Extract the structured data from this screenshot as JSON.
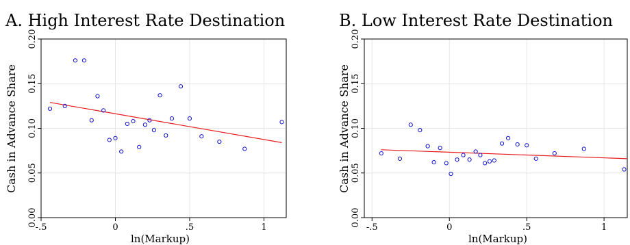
{
  "chart_data": [
    {
      "type": "scatter",
      "title": "A. High Interest Rate Destination",
      "xlabel": "ln(Markup)",
      "ylabel": "Cash in Advance Share",
      "xlim": [
        -0.5,
        1.15
      ],
      "ylim": [
        0,
        0.2
      ],
      "xticks": [
        -0.5,
        0,
        0.5,
        1
      ],
      "xtick_labels": [
        "-.5",
        "0",
        ".5",
        "1"
      ],
      "yticks": [
        0,
        0.05,
        0.1,
        0.15,
        0.2
      ],
      "ytick_labels": [
        "0.00",
        "0.05",
        "0.10",
        "0.15",
        "0.20"
      ],
      "grid": true,
      "marker_color": "#1010cc",
      "fit_color": "#e8191c",
      "points": [
        {
          "x": -0.44,
          "y": 0.122
        },
        {
          "x": -0.34,
          "y": 0.125
        },
        {
          "x": -0.27,
          "y": 0.176
        },
        {
          "x": -0.21,
          "y": 0.176
        },
        {
          "x": -0.16,
          "y": 0.109
        },
        {
          "x": -0.12,
          "y": 0.136
        },
        {
          "x": -0.08,
          "y": 0.12
        },
        {
          "x": -0.04,
          "y": 0.087
        },
        {
          "x": 0.0,
          "y": 0.089
        },
        {
          "x": 0.04,
          "y": 0.074
        },
        {
          "x": 0.08,
          "y": 0.105
        },
        {
          "x": 0.12,
          "y": 0.108
        },
        {
          "x": 0.16,
          "y": 0.079
        },
        {
          "x": 0.2,
          "y": 0.104
        },
        {
          "x": 0.23,
          "y": 0.109
        },
        {
          "x": 0.26,
          "y": 0.098
        },
        {
          "x": 0.3,
          "y": 0.137
        },
        {
          "x": 0.34,
          "y": 0.092
        },
        {
          "x": 0.38,
          "y": 0.111
        },
        {
          "x": 0.44,
          "y": 0.147
        },
        {
          "x": 0.5,
          "y": 0.111
        },
        {
          "x": 0.58,
          "y": 0.091
        },
        {
          "x": 0.7,
          "y": 0.085
        },
        {
          "x": 0.87,
          "y": 0.077
        },
        {
          "x": 1.12,
          "y": 0.107
        }
      ],
      "fit_line": {
        "x": [
          -0.44,
          1.12
        ],
        "y": [
          0.129,
          0.084
        ]
      }
    },
    {
      "type": "scatter",
      "title": "B. Low Interest Rate Destination",
      "xlabel": "ln(Markup)",
      "ylabel": "Cash in Advance Share",
      "xlim": [
        -0.55,
        1.15
      ],
      "ylim": [
        0,
        0.2
      ],
      "xticks": [
        -0.5,
        0,
        0.5,
        1
      ],
      "xtick_labels": [
        "-.5",
        "0",
        ".5",
        "1"
      ],
      "yticks": [
        0,
        0.05,
        0.1,
        0.15,
        0.2
      ],
      "ytick_labels": [
        "0.00",
        "0.05",
        "0.10",
        "0.15",
        "0.20"
      ],
      "grid": true,
      "marker_color": "#1010cc",
      "fit_color": "#e8191c",
      "points": [
        {
          "x": -0.44,
          "y": 0.072
        },
        {
          "x": -0.32,
          "y": 0.066
        },
        {
          "x": -0.25,
          "y": 0.104
        },
        {
          "x": -0.19,
          "y": 0.098
        },
        {
          "x": -0.14,
          "y": 0.08
        },
        {
          "x": -0.1,
          "y": 0.062
        },
        {
          "x": -0.06,
          "y": 0.078
        },
        {
          "x": -0.02,
          "y": 0.061
        },
        {
          "x": 0.01,
          "y": 0.049
        },
        {
          "x": 0.05,
          "y": 0.065
        },
        {
          "x": 0.09,
          "y": 0.07
        },
        {
          "x": 0.13,
          "y": 0.065
        },
        {
          "x": 0.17,
          "y": 0.074
        },
        {
          "x": 0.2,
          "y": 0.07
        },
        {
          "x": 0.23,
          "y": 0.061
        },
        {
          "x": 0.26,
          "y": 0.063
        },
        {
          "x": 0.29,
          "y": 0.064
        },
        {
          "x": 0.34,
          "y": 0.083
        },
        {
          "x": 0.38,
          "y": 0.089
        },
        {
          "x": 0.44,
          "y": 0.082
        },
        {
          "x": 0.5,
          "y": 0.081
        },
        {
          "x": 0.56,
          "y": 0.066
        },
        {
          "x": 0.68,
          "y": 0.072
        },
        {
          "x": 0.87,
          "y": 0.077
        },
        {
          "x": 1.13,
          "y": 0.054
        }
      ],
      "fit_line": {
        "x": [
          -0.44,
          1.15
        ],
        "y": [
          0.076,
          0.066
        ]
      }
    }
  ]
}
